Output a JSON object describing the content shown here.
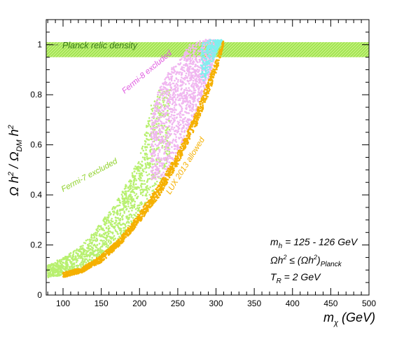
{
  "chart_data": {
    "type": "scatter",
    "xlabel_main": "m",
    "xlabel_sub": "χ",
    "xlabel_unit": " (GeV)",
    "ylabel": "Ω h² / Ω_DM h²",
    "xlim": [
      78,
      500
    ],
    "ylim": [
      0,
      1.1
    ],
    "xticks": [
      100,
      150,
      200,
      250,
      300,
      350,
      400,
      450,
      500
    ],
    "yticks": [
      0,
      0.2,
      0.4,
      0.6,
      0.8,
      1
    ],
    "ytick_labels": [
      "0",
      "0.2",
      "0.4",
      "0.6",
      "0.8",
      "1"
    ],
    "planck_band": {
      "label": "Planck relic density",
      "ymin": 0.95,
      "ymax": 1.01,
      "color": "#99e634"
    },
    "regions": [
      {
        "label": "Fermi-7 excluded",
        "color": "#b8f070",
        "lower": [
          [
            80,
            0.07
          ],
          [
            100,
            0.08
          ],
          [
            125,
            0.1
          ],
          [
            150,
            0.15
          ],
          [
            175,
            0.23
          ],
          [
            200,
            0.33
          ],
          [
            225,
            0.45
          ],
          [
            240,
            0.55
          ]
        ],
        "upper": [
          [
            80,
            0.12
          ],
          [
            100,
            0.15
          ],
          [
            125,
            0.2
          ],
          [
            150,
            0.29
          ],
          [
            175,
            0.4
          ],
          [
            200,
            0.55
          ],
          [
            215,
            0.76
          ],
          [
            225,
            0.82
          ]
        ]
      },
      {
        "label": "Fermi-8 excluded",
        "color": "#f0b6f0",
        "lower": [
          [
            230,
            0.46
          ],
          [
            250,
            0.56
          ],
          [
            265,
            0.66
          ],
          [
            280,
            0.78
          ],
          [
            290,
            0.86
          ],
          [
            300,
            0.97
          ]
        ],
        "upper": [
          [
            215,
            0.7
          ],
          [
            225,
            0.82
          ],
          [
            240,
            0.9
          ],
          [
            255,
            0.95
          ],
          [
            265,
            1.0
          ],
          [
            285,
            1.02
          ]
        ]
      },
      {
        "label": "cyan",
        "color": "#7ff0ee",
        "lower": [
          [
            285,
            0.85
          ],
          [
            295,
            0.93
          ],
          [
            305,
            1.0
          ]
        ],
        "upper": [
          [
            280,
            1.0
          ],
          [
            290,
            1.02
          ],
          [
            308,
            1.02
          ]
        ]
      },
      {
        "label": "LUX 2013 allowed",
        "color": "#f5b000",
        "lower": [
          [
            100,
            0.07
          ],
          [
            125,
            0.09
          ],
          [
            150,
            0.13
          ],
          [
            175,
            0.2
          ],
          [
            200,
            0.29
          ],
          [
            225,
            0.39
          ],
          [
            250,
            0.52
          ],
          [
            275,
            0.68
          ],
          [
            300,
            0.88
          ],
          [
            310,
            1.0
          ]
        ],
        "upper": [
          [
            100,
            0.09
          ],
          [
            125,
            0.11
          ],
          [
            150,
            0.16
          ],
          [
            175,
            0.23
          ],
          [
            200,
            0.33
          ],
          [
            225,
            0.44
          ],
          [
            250,
            0.57
          ],
          [
            275,
            0.74
          ],
          [
            300,
            0.94
          ],
          [
            310,
            1.02
          ]
        ]
      }
    ],
    "annotations": {
      "fermi7": "Fermi-7 excluded",
      "fermi8": "Fermi-8 excluded",
      "lux": "LUX 2013 allowed",
      "mh": "m_h = 125 - 126 GeV",
      "omega": "Ωh² ≤ (Ωh²)_Planck",
      "tr": "T_R = 2 GeV"
    }
  }
}
